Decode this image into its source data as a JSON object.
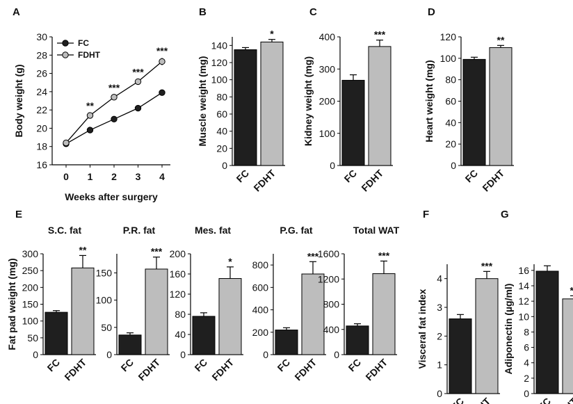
{
  "colors": {
    "FC": "#1f1f1f",
    "FDHT": "#bdbdbd"
  },
  "chart_data": [
    {
      "panel": "A",
      "type": "line",
      "xlabel": "Weeks after surgery",
      "ylabel": "Body weight (g)",
      "x": [
        0,
        1,
        2,
        3,
        4
      ],
      "ylim": [
        16,
        30
      ],
      "yticks": [
        16,
        18,
        20,
        22,
        24,
        26,
        28,
        30
      ],
      "series": [
        {
          "name": "FC",
          "values": [
            18.3,
            19.8,
            21.0,
            22.2,
            23.9
          ],
          "errors": [
            0.15,
            0.15,
            0.15,
            0.15,
            0.2
          ]
        },
        {
          "name": "FDHT",
          "values": [
            18.4,
            21.4,
            23.4,
            25.1,
            27.3
          ],
          "errors": [
            0.15,
            0.3,
            0.3,
            0.3,
            0.4
          ]
        }
      ],
      "significance": [
        "",
        "**",
        "***",
        "***",
        "***"
      ],
      "legend_position": "top-left"
    },
    {
      "panel": "B",
      "type": "bar",
      "ylabel": "Muscle weight (mg)",
      "categories": [
        "FC",
        "FDHT"
      ],
      "values": [
        135,
        144
      ],
      "errors": [
        2.5,
        3
      ],
      "ylim": [
        0,
        150
      ],
      "yticks": [
        0,
        20,
        40,
        60,
        80,
        100,
        120,
        140
      ],
      "significance": "*"
    },
    {
      "panel": "C",
      "type": "bar",
      "ylabel": "Kidney weight (mg)",
      "categories": [
        "FC",
        "FDHT"
      ],
      "values": [
        265,
        370
      ],
      "errors": [
        17,
        20
      ],
      "ylim": [
        0,
        400
      ],
      "yticks": [
        0,
        100,
        200,
        300,
        400
      ],
      "significance": "***"
    },
    {
      "panel": "D",
      "type": "bar",
      "ylabel": "Heart weight (mg)",
      "categories": [
        "FC",
        "FDHT"
      ],
      "values": [
        99,
        110
      ],
      "errors": [
        2,
        2
      ],
      "ylim": [
        0,
        120
      ],
      "yticks": [
        0,
        20,
        40,
        60,
        80,
        100,
        120
      ],
      "significance": "**"
    },
    {
      "panel": "E",
      "type": "bar",
      "title": "S.C. fat",
      "ylabel": "Fat pad weight (mg)",
      "categories": [
        "FC",
        "FDHT"
      ],
      "values": [
        126,
        258
      ],
      "errors": [
        5,
        37
      ],
      "ylim": [
        0,
        300
      ],
      "yticks": [
        0,
        50,
        100,
        150,
        200,
        250,
        300
      ],
      "significance": "**"
    },
    {
      "panel": "E",
      "type": "bar",
      "title": "P.R. fat",
      "categories": [
        "FC",
        "FDHT"
      ],
      "values": [
        36,
        157
      ],
      "errors": [
        4,
        22
      ],
      "ylim": [
        0,
        185
      ],
      "yticks": [
        0,
        50,
        100,
        150
      ],
      "significance": "***"
    },
    {
      "panel": "E",
      "type": "bar",
      "title": "Mes. fat",
      "categories": [
        "FC",
        "FDHT"
      ],
      "values": [
        76,
        151
      ],
      "errors": [
        7,
        23
      ],
      "ylim": [
        0,
        200
      ],
      "yticks": [
        0,
        40,
        80,
        120,
        160,
        200
      ],
      "significance": "*"
    },
    {
      "panel": "E",
      "type": "bar",
      "title": "P.G. fat",
      "categories": [
        "FC",
        "FDHT"
      ],
      "values": [
        220,
        720
      ],
      "errors": [
        20,
        110
      ],
      "ylim": [
        0,
        900
      ],
      "yticks": [
        0,
        200,
        400,
        600,
        800
      ],
      "significance": "***"
    },
    {
      "panel": "E",
      "type": "bar",
      "title": "Total WAT",
      "categories": [
        "FC",
        "FDHT"
      ],
      "values": [
        455,
        1285
      ],
      "errors": [
        35,
        200
      ],
      "ylim": [
        0,
        1600
      ],
      "yticks": [
        0,
        400,
        800,
        1200,
        1600
      ],
      "significance": "***"
    },
    {
      "panel": "F",
      "type": "bar",
      "ylabel": "Visceral fat index",
      "categories": [
        "FC",
        "FDHT"
      ],
      "values": [
        2.6,
        4.0
      ],
      "errors": [
        0.15,
        0.25
      ],
      "ylim": [
        0,
        4.5
      ],
      "yticks": [
        0,
        1,
        2,
        3,
        4
      ],
      "significance": "***"
    },
    {
      "panel": "G",
      "type": "bar",
      "ylabel": "Adiponectin (µg/ml)",
      "categories": [
        "FC",
        "FDHT"
      ],
      "values": [
        15.9,
        12.3
      ],
      "errors": [
        0.7,
        0.4
      ],
      "ylim": [
        0,
        16.8
      ],
      "yticks": [
        0,
        2,
        4,
        6,
        8,
        10,
        12,
        14,
        16
      ],
      "significance": "**"
    }
  ]
}
